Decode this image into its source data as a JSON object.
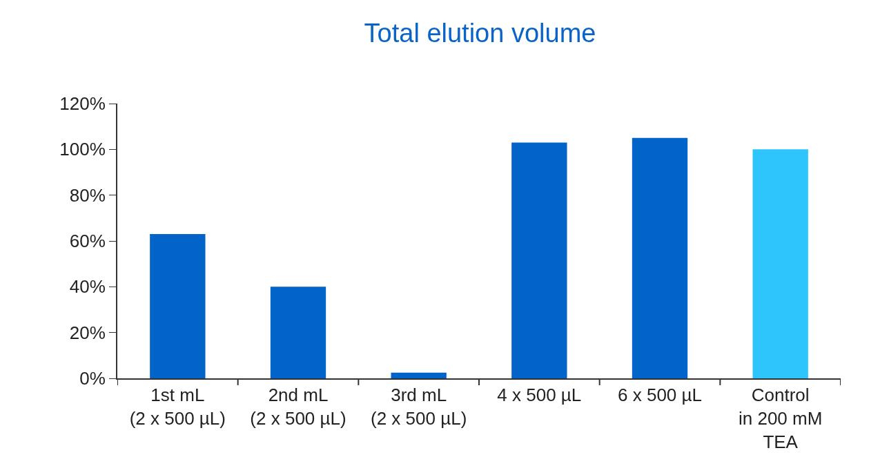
{
  "chart_data": {
    "type": "bar",
    "title": "Total elution volume",
    "categories": [
      "1st mL\n(2 x 500 µL)",
      "2nd mL\n(2 x 500 µL)",
      "3rd mL\n(2 x 500 µL)",
      "4 x 500 µL",
      "6 x 500 µL",
      "Control\nin 200 mM\nTEA"
    ],
    "values": [
      63,
      40,
      2.5,
      103,
      105,
      100
    ],
    "colors": [
      "#0264c8",
      "#0264c8",
      "#0264c8",
      "#0264c8",
      "#0264c8",
      "#2ec5fd"
    ],
    "ylim": [
      0,
      120
    ],
    "yticks": [
      {
        "value": 0,
        "label": "0%"
      },
      {
        "value": 20,
        "label": "20%"
      },
      {
        "value": 40,
        "label": "40%"
      },
      {
        "value": 60,
        "label": "60%"
      },
      {
        "value": 80,
        "label": "80%"
      },
      {
        "value": 100,
        "label": "100%"
      },
      {
        "value": 120,
        "label": "120%"
      }
    ]
  }
}
